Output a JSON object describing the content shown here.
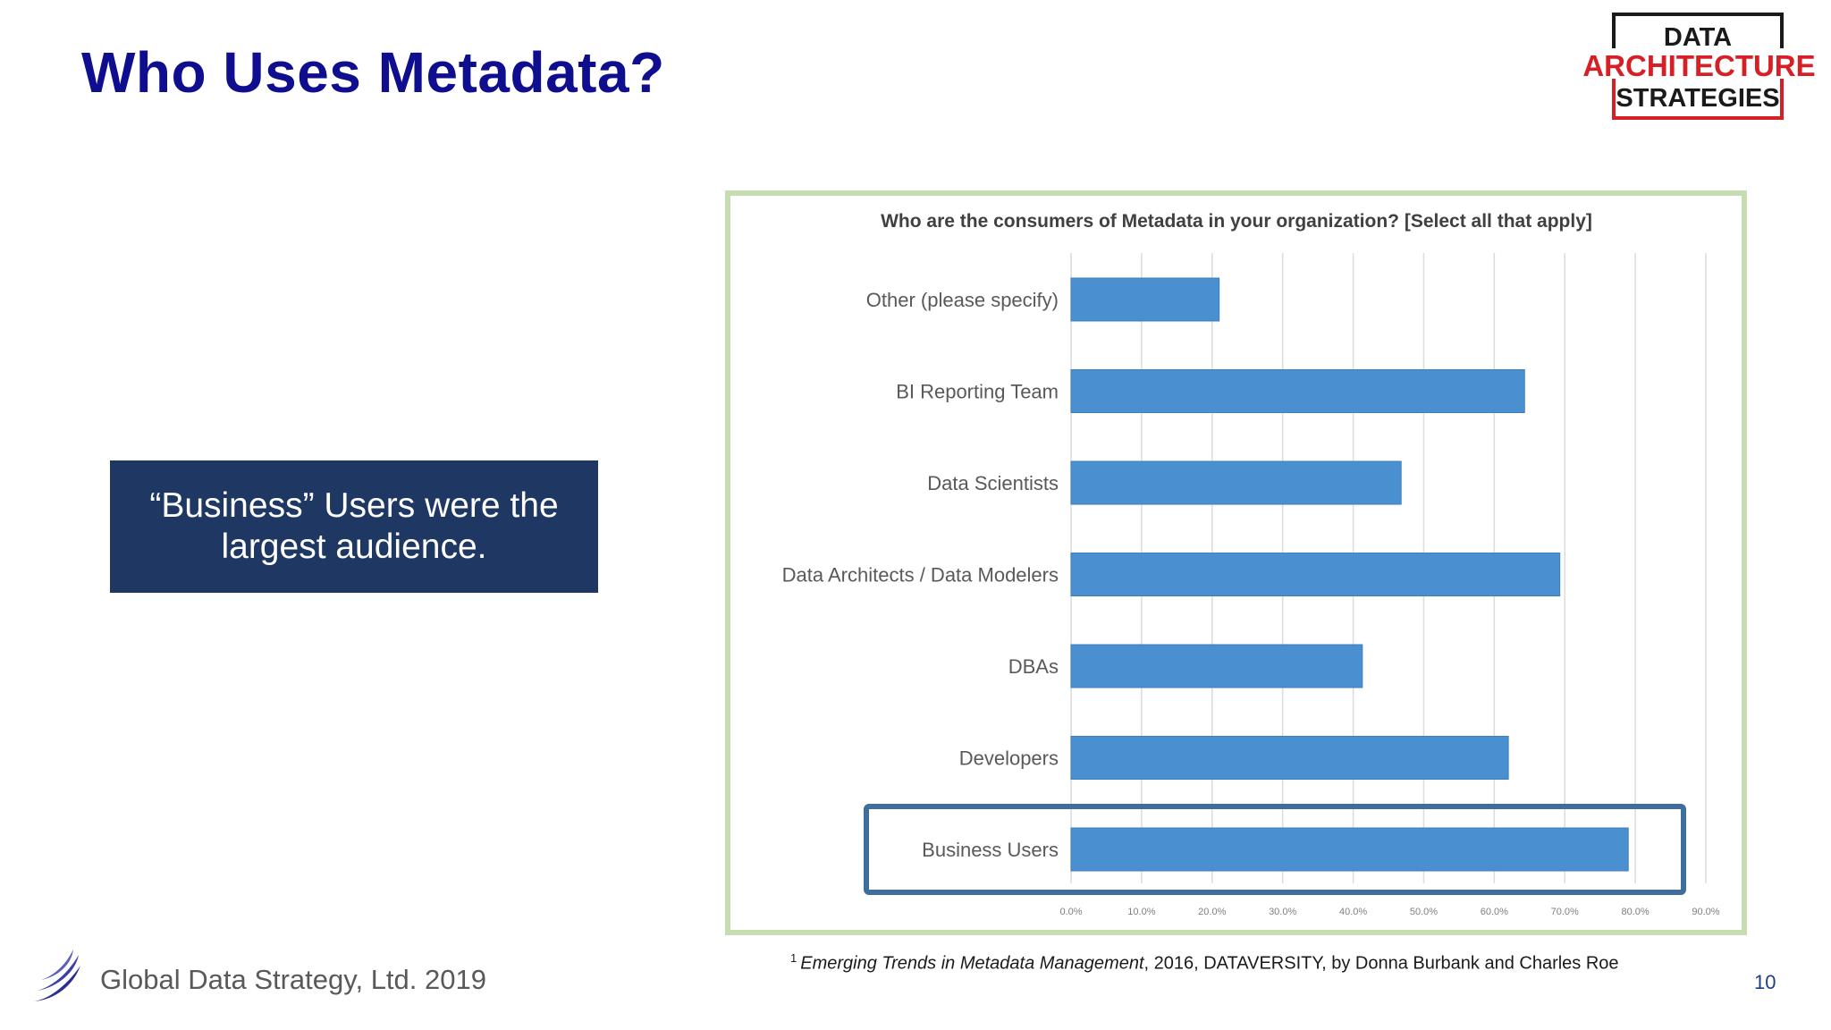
{
  "slide": {
    "title": "Who Uses Metadata?",
    "callout": "“Business” Users were the largest audience.",
    "page_number": "10",
    "company": "Global Data Strategy, Ltd. 2019"
  },
  "logo": {
    "line1": "DATA",
    "line2": "ARCHITECTURE",
    "line3": "STRATEGIES",
    "colors": {
      "dark": "#1a1a1a",
      "red": "#d62026"
    }
  },
  "footnote": {
    "marker": "1",
    "title": "Emerging Trends in Metadata Management",
    "rest": ", 2016, DATAVERSITY, by Donna Burbank and Charles Roe"
  },
  "colors": {
    "title": "#0f0e8f",
    "callout_bg": "#1f3763",
    "bar": "#4a8fd0",
    "highlight_border": "#3f6d9e",
    "chart_border": "#c6ddb2"
  },
  "chart_data": {
    "type": "bar",
    "orientation": "horizontal",
    "title": "Who are the consumers of Metadata in your organization? [Select all that apply]",
    "categories": [
      "Other (please specify)",
      "BI Reporting Team",
      "Data Scientists",
      "Data Architects / Data Modelers",
      "DBAs",
      "Developers",
      "Business Users"
    ],
    "values": [
      21.0,
      64.3,
      46.8,
      69.3,
      41.3,
      62.0,
      79.0
    ],
    "xlim": [
      0,
      90
    ],
    "xticks": [
      "0.0%",
      "10.0%",
      "20.0%",
      "30.0%",
      "40.0%",
      "50.0%",
      "60.0%",
      "70.0%",
      "80.0%",
      "90.0%"
    ],
    "grid": true,
    "highlighted_category": "Business Users"
  }
}
